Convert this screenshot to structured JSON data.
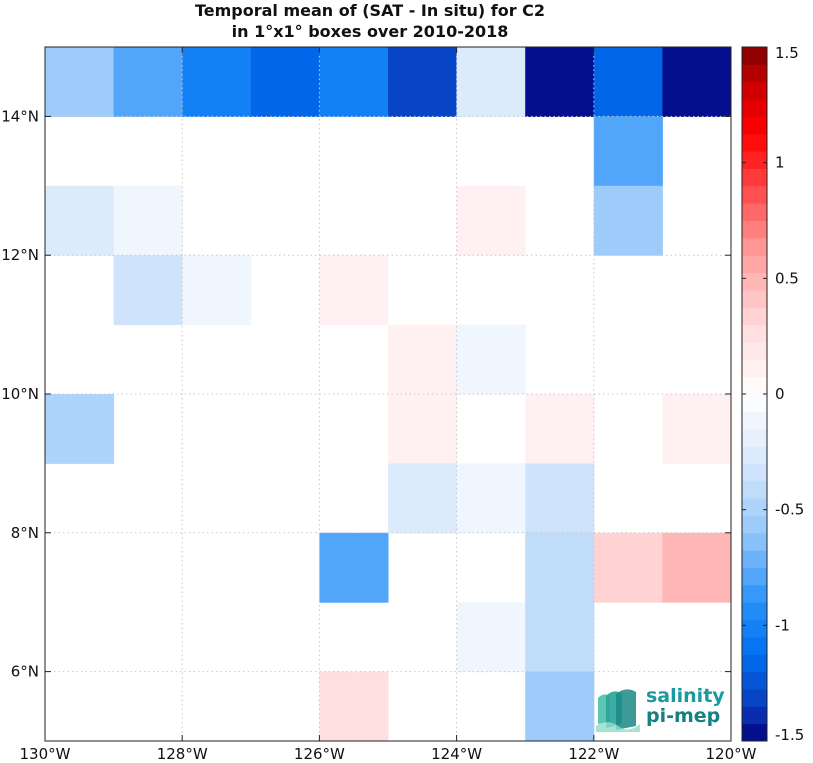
{
  "chart_data": {
    "type": "heatmap",
    "title": [
      "Temporal mean of (SAT - In situ) for C2",
      "in 1°x1° boxes over 2010-2018"
    ],
    "xlim": [
      -130,
      -120
    ],
    "ylim": [
      5,
      15
    ],
    "x_ticks": [
      {
        "value": -130,
        "label": "130°W"
      },
      {
        "value": -128,
        "label": "128°W"
      },
      {
        "value": -126,
        "label": "126°W"
      },
      {
        "value": -124,
        "label": "124°W"
      },
      {
        "value": -122,
        "label": "122°W"
      },
      {
        "value": -120,
        "label": "120°W"
      }
    ],
    "y_ticks": [
      {
        "value": 6,
        "label": "6°N"
      },
      {
        "value": 8,
        "label": "8°N"
      },
      {
        "value": 10,
        "label": "10°N"
      },
      {
        "value": 12,
        "label": "12°N"
      },
      {
        "value": 14,
        "label": "14°N"
      }
    ],
    "grid": true,
    "colorbar": {
      "min": -1.5,
      "max": 1.5,
      "ticks": [
        {
          "value": 1.5,
          "label": "1.5"
        },
        {
          "value": 1,
          "label": "1"
        },
        {
          "value": 0.5,
          "label": "0.5"
        },
        {
          "value": 0,
          "label": "0"
        },
        {
          "value": -0.5,
          "label": "-0.5"
        },
        {
          "value": -1,
          "label": "-1"
        },
        {
          "value": -1.5,
          "label": "-1.5"
        }
      ]
    },
    "cells": [
      {
        "lon": -130,
        "lat": 14,
        "value": -0.6
      },
      {
        "lon": -129,
        "lat": 14,
        "value": -0.8
      },
      {
        "lon": -128,
        "lat": 14,
        "value": -1.0
      },
      {
        "lon": -127,
        "lat": 14,
        "value": -1.2
      },
      {
        "lon": -126,
        "lat": 14,
        "value": -1.0
      },
      {
        "lon": -125,
        "lat": 14,
        "value": -1.3
      },
      {
        "lon": -124,
        "lat": 14,
        "value": -0.25
      },
      {
        "lon": -123,
        "lat": 14,
        "value": -1.5
      },
      {
        "lon": -122,
        "lat": 14,
        "value": -1.2
      },
      {
        "lon": -121,
        "lat": 14,
        "value": -1.5
      },
      {
        "lon": -122,
        "lat": 13,
        "value": -0.8
      },
      {
        "lon": -130,
        "lat": 12,
        "value": -0.25
      },
      {
        "lon": -129,
        "lat": 12,
        "value": -0.15
      },
      {
        "lon": -124,
        "lat": 12,
        "value": 0.15
      },
      {
        "lon": -122,
        "lat": 12,
        "value": -0.6
      },
      {
        "lon": -129,
        "lat": 11,
        "value": -0.35
      },
      {
        "lon": -128,
        "lat": 11,
        "value": -0.15
      },
      {
        "lon": -126,
        "lat": 11,
        "value": 0.15
      },
      {
        "lon": -125,
        "lat": 10,
        "value": 0.15
      },
      {
        "lon": -124,
        "lat": 10,
        "value": -0.15
      },
      {
        "lon": -130,
        "lat": 9,
        "value": -0.5
      },
      {
        "lon": -125,
        "lat": 9,
        "value": 0.15
      },
      {
        "lon": -123,
        "lat": 9,
        "value": 0.15
      },
      {
        "lon": -121,
        "lat": 9,
        "value": 0.15
      },
      {
        "lon": -125,
        "lat": 8,
        "value": -0.25
      },
      {
        "lon": -124,
        "lat": 8,
        "value": -0.15
      },
      {
        "lon": -123,
        "lat": 8,
        "value": -0.35
      },
      {
        "lon": -126,
        "lat": 7,
        "value": -0.8
      },
      {
        "lon": -123,
        "lat": 7,
        "value": -0.45
      },
      {
        "lon": -122,
        "lat": 7,
        "value": 0.35
      },
      {
        "lon": -121,
        "lat": 7,
        "value": 0.5
      },
      {
        "lon": -124,
        "lat": 6,
        "value": -0.15
      },
      {
        "lon": -123,
        "lat": 6,
        "value": -0.45
      },
      {
        "lon": -126,
        "lat": 5,
        "value": 0.25
      },
      {
        "lon": -123,
        "lat": 5,
        "value": -0.55
      }
    ]
  },
  "logo": {
    "line1": "salinity",
    "line2": "pi-mep"
  }
}
